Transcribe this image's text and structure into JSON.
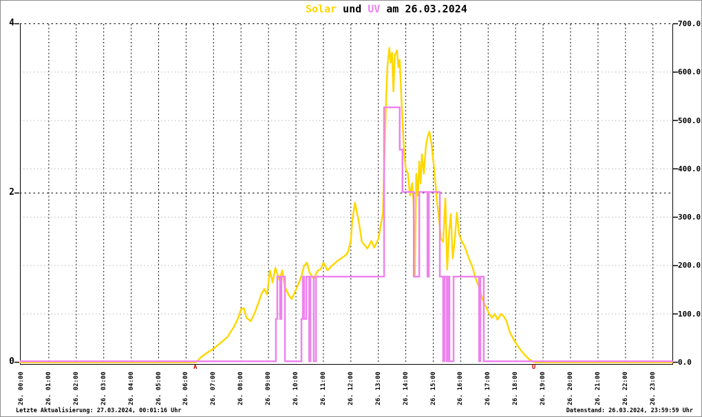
{
  "title": {
    "solar": "Solar",
    "und": " und ",
    "uv": "UV",
    "date": " am 26.03.2024"
  },
  "colors": {
    "solar": "#FFD700",
    "uv": "#EE82EE",
    "marker_red": "#CC0000",
    "grid_gray": "#b4b4b4",
    "grid_black": "#000000"
  },
  "y_axis_left": {
    "labels": [
      "4",
      "2",
      "0"
    ],
    "values": [
      4,
      2,
      0
    ]
  },
  "y_axis_right": {
    "labels": [
      "700.0",
      "600.0",
      "500.0",
      "400.0",
      "300.0",
      "200.0",
      "100.0",
      "0.0"
    ],
    "values": [
      700,
      600,
      500,
      400,
      300,
      200,
      100,
      0
    ]
  },
  "x_axis": {
    "labels": [
      "26. 00:00",
      "26. 01:00",
      "26. 02:00",
      "26. 03:00",
      "26. 04:00",
      "26. 05:00",
      "26. 06:00",
      "26. 07:00",
      "26. 08:00",
      "26. 09:00",
      "26. 10:00",
      "26. 11:00",
      "26. 12:00",
      "26. 13:00",
      "26. 14:00",
      "26. 15:00",
      "26. 16:00",
      "26. 17:00",
      "26. 18:00",
      "26. 19:00",
      "26. 20:00",
      "26. 21:00",
      "26. 22:00",
      "26. 23:00"
    ]
  },
  "markers": {
    "sunrise_label": "A",
    "sunrise_time": 6.34,
    "sunset_label": "U",
    "sunset_time": 18.67
  },
  "footer": {
    "left": "Letzte Aktualisierung: 27.03.2024, 00:01:16 Uhr",
    "right": "Datenstand: 26.03.2024, 23:59:59 Uhr"
  },
  "chart_data": {
    "type": "line",
    "title": "Solar und UV am 26.03.2024",
    "x_unit": "hour_of_day",
    "x_range": [
      -0.05,
      23.73
    ],
    "axes": {
      "left": {
        "name": "UV",
        "range": [
          0,
          4
        ],
        "major_gridlines_at": [
          2,
          4
        ]
      },
      "right": {
        "name": "Solar",
        "range": [
          0,
          700
        ],
        "minor_gridlines_at": [
          100,
          200,
          300,
          400,
          500,
          600
        ]
      }
    },
    "grid": true,
    "legend": "none",
    "series": [
      {
        "name": "Solar",
        "axis": "right",
        "style": "line",
        "color": "#FFD700",
        "points": [
          [
            -0.05,
            0
          ],
          [
            6.35,
            0
          ],
          [
            6.4,
            2
          ],
          [
            6.55,
            11
          ],
          [
            6.8,
            21
          ],
          [
            7.0,
            28
          ],
          [
            7.25,
            40
          ],
          [
            7.5,
            52
          ],
          [
            7.75,
            74
          ],
          [
            7.9,
            92
          ],
          [
            8.0,
            110
          ],
          [
            8.1,
            112
          ],
          [
            8.2,
            92
          ],
          [
            8.35,
            85
          ],
          [
            8.5,
            102
          ],
          [
            8.65,
            125
          ],
          [
            8.75,
            142
          ],
          [
            8.85,
            152
          ],
          [
            8.95,
            140
          ],
          [
            9.05,
            190
          ],
          [
            9.15,
            165
          ],
          [
            9.25,
            195
          ],
          [
            9.4,
            170
          ],
          [
            9.5,
            190
          ],
          [
            9.6,
            155
          ],
          [
            9.75,
            138
          ],
          [
            9.85,
            131
          ],
          [
            10.0,
            150
          ],
          [
            10.2,
            178
          ],
          [
            10.3,
            200
          ],
          [
            10.4,
            206
          ],
          [
            10.5,
            185
          ],
          [
            10.65,
            173
          ],
          [
            10.8,
            190
          ],
          [
            10.9,
            192
          ],
          [
            11.0,
            206
          ],
          [
            11.15,
            190
          ],
          [
            11.3,
            199
          ],
          [
            11.5,
            209
          ],
          [
            11.8,
            221
          ],
          [
            11.9,
            228
          ],
          [
            12.0,
            253
          ],
          [
            12.05,
            292
          ],
          [
            12.15,
            330
          ],
          [
            12.3,
            287
          ],
          [
            12.4,
            249
          ],
          [
            12.55,
            239
          ],
          [
            12.6,
            235
          ],
          [
            12.75,
            251
          ],
          [
            12.85,
            237
          ],
          [
            13.0,
            255
          ],
          [
            13.1,
            287
          ],
          [
            13.17,
            310
          ],
          [
            13.22,
            420
          ],
          [
            13.28,
            540
          ],
          [
            13.33,
            610
          ],
          [
            13.4,
            650
          ],
          [
            13.45,
            620
          ],
          [
            13.5,
            640
          ],
          [
            13.55,
            560
          ],
          [
            13.6,
            635
          ],
          [
            13.68,
            645
          ],
          [
            13.73,
            610
          ],
          [
            13.78,
            625
          ],
          [
            13.83,
            560
          ],
          [
            13.88,
            500
          ],
          [
            13.93,
            445
          ],
          [
            14.0,
            400
          ],
          [
            14.08,
            390
          ],
          [
            14.15,
            345
          ],
          [
            14.23,
            370
          ],
          [
            14.28,
            330
          ],
          [
            14.33,
            180
          ],
          [
            14.38,
            390
          ],
          [
            14.44,
            345
          ],
          [
            14.49,
            415
          ],
          [
            14.54,
            370
          ],
          [
            14.59,
            430
          ],
          [
            14.66,
            390
          ],
          [
            14.73,
            445
          ],
          [
            14.79,
            465
          ],
          [
            14.86,
            477
          ],
          [
            14.94,
            450
          ],
          [
            15.04,
            396
          ],
          [
            15.14,
            330
          ],
          [
            15.2,
            303
          ],
          [
            15.28,
            255
          ],
          [
            15.36,
            249
          ],
          [
            15.44,
            339
          ],
          [
            15.51,
            192
          ],
          [
            15.58,
            270
          ],
          [
            15.64,
            306
          ],
          [
            15.71,
            215
          ],
          [
            15.78,
            250
          ],
          [
            15.86,
            309
          ],
          [
            15.94,
            265
          ],
          [
            16.04,
            250
          ],
          [
            16.14,
            240
          ],
          [
            16.29,
            216
          ],
          [
            16.44,
            195
          ],
          [
            16.54,
            174
          ],
          [
            16.67,
            155
          ],
          [
            16.79,
            131
          ],
          [
            16.94,
            112
          ],
          [
            17.04,
            100
          ],
          [
            17.14,
            92
          ],
          [
            17.24,
            100
          ],
          [
            17.34,
            88
          ],
          [
            17.47,
            100
          ],
          [
            17.57,
            95
          ],
          [
            17.67,
            85
          ],
          [
            17.79,
            62
          ],
          [
            17.92,
            48
          ],
          [
            18.05,
            36
          ],
          [
            18.2,
            24
          ],
          [
            18.35,
            14
          ],
          [
            18.5,
            6
          ],
          [
            18.62,
            2
          ],
          [
            18.7,
            0
          ],
          [
            23.73,
            0
          ]
        ]
      },
      {
        "name": "UV",
        "axis": "left",
        "style": "step",
        "color": "#EE82EE",
        "points": [
          [
            -0.05,
            0
          ],
          [
            9.27,
            0.5
          ],
          [
            9.32,
            1
          ],
          [
            9.42,
            0.5
          ],
          [
            9.47,
            1
          ],
          [
            9.6,
            0
          ],
          [
            10.2,
            0.5
          ],
          [
            10.25,
            1
          ],
          [
            10.3,
            0.5
          ],
          [
            10.38,
            1
          ],
          [
            10.48,
            0
          ],
          [
            10.53,
            1
          ],
          [
            10.65,
            0
          ],
          [
            10.73,
            1
          ],
          [
            13.21,
            3
          ],
          [
            13.78,
            2.5
          ],
          [
            13.88,
            2
          ],
          [
            14.29,
            1
          ],
          [
            14.49,
            2
          ],
          [
            14.79,
            1
          ],
          [
            14.84,
            2
          ],
          [
            15.24,
            1
          ],
          [
            15.36,
            0
          ],
          [
            15.41,
            1
          ],
          [
            15.49,
            0
          ],
          [
            15.54,
            1
          ],
          [
            15.59,
            0
          ],
          [
            15.74,
            1
          ],
          [
            16.67,
            0
          ],
          [
            16.72,
            1
          ],
          [
            16.84,
            0
          ]
        ]
      }
    ]
  }
}
